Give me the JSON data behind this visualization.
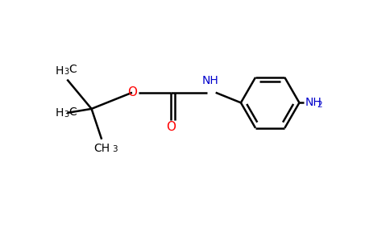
{
  "background_color": "#ffffff",
  "bond_color": "#000000",
  "oxygen_color": "#ff0000",
  "nitrogen_color": "#0000cc",
  "font_size": 10,
  "font_size_sub": 7.5,
  "line_width": 1.8,
  "fig_width": 4.84,
  "fig_height": 3.0,
  "dpi": 100,
  "xlim": [
    0,
    9.5
  ],
  "ylim": [
    0,
    5.8
  ]
}
